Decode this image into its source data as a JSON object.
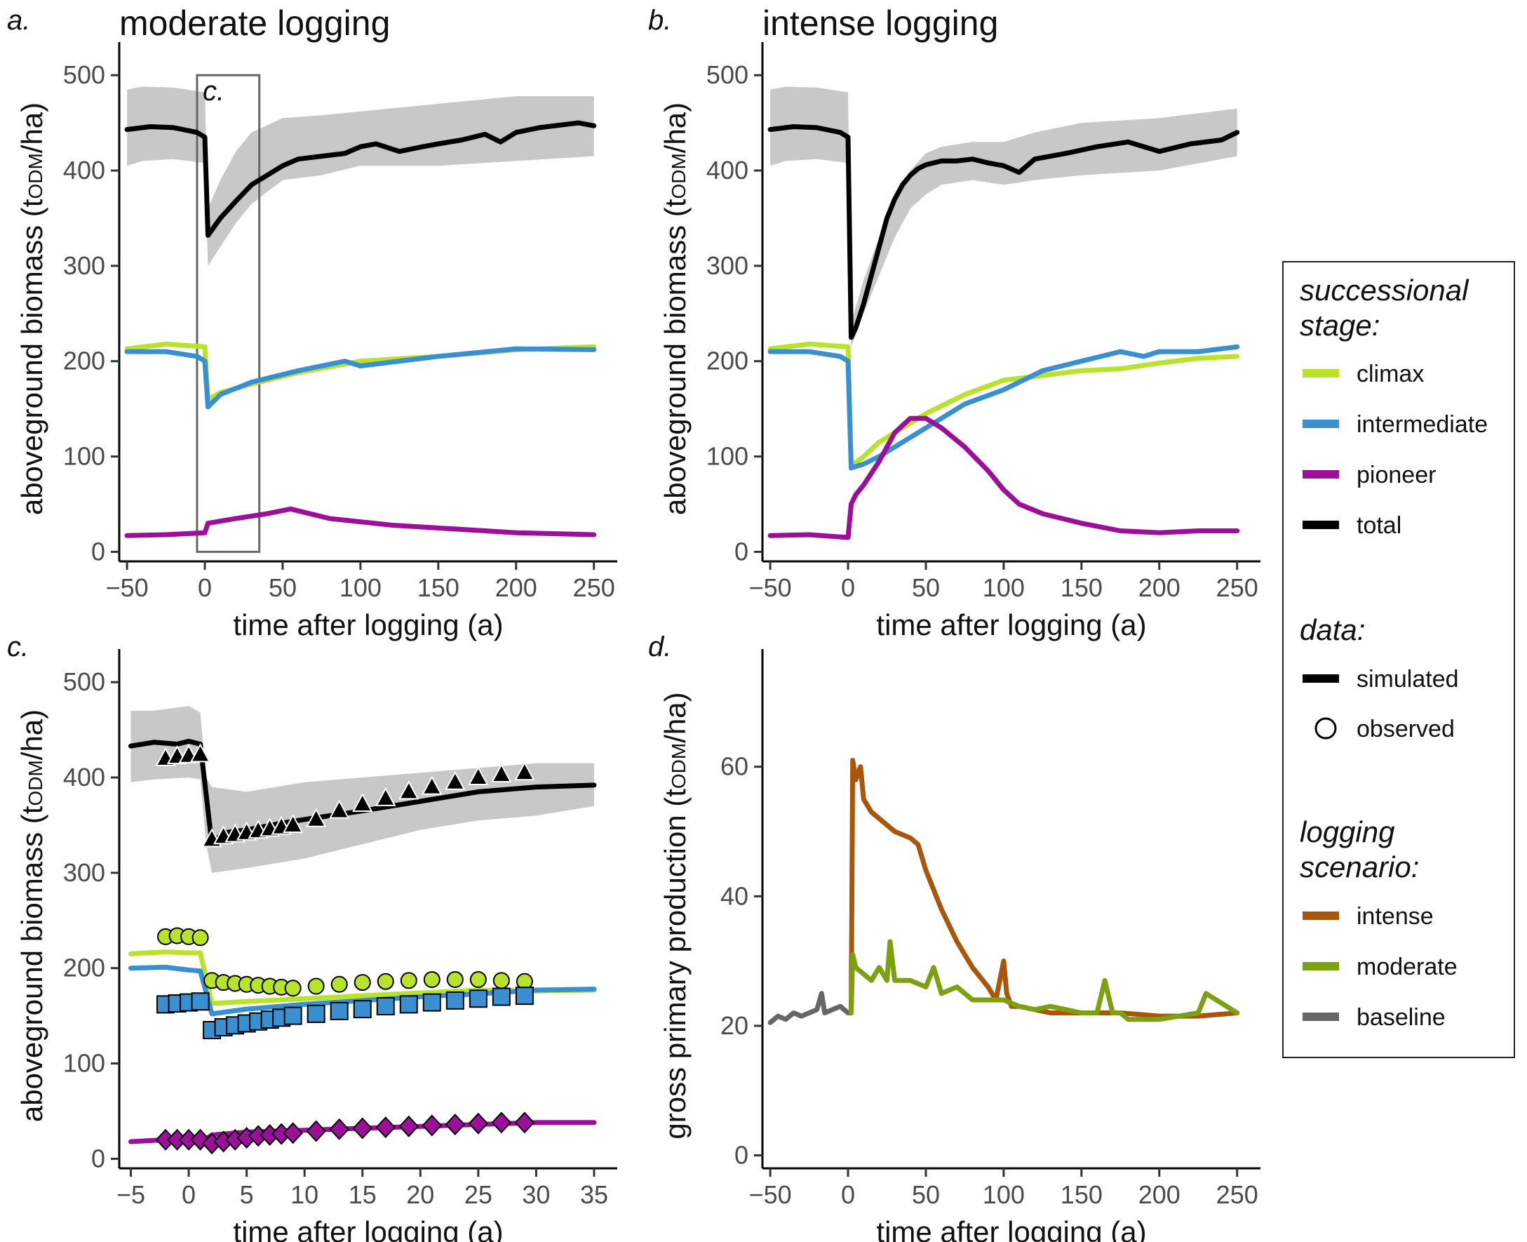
{
  "colors": {
    "climax": "#b9e22b",
    "intermediate": "#3a8fd1",
    "pioneer": "#9b0f9a",
    "total": "#000000",
    "band": "#c8c8c8",
    "intense": "#a8560b",
    "moderate": "#7da010",
    "baseline": "#666666"
  },
  "legend": {
    "stage_head_1": "successional",
    "stage_head_2": "stage:",
    "stage_items": [
      "climax",
      "intermediate",
      "pioneer",
      "total"
    ],
    "data_head": "data:",
    "data_items": [
      "simulated",
      "observed"
    ],
    "scenario_head_1": "logging",
    "scenario_head_2": "scenario:",
    "scenario_items": [
      "intense",
      "moderate",
      "baseline"
    ]
  },
  "chart_data": [
    {
      "id": "a",
      "letter": "a.",
      "type": "line",
      "title": "moderate logging",
      "xlabel": "time after logging (a)",
      "ylabel": "aboveground biomass (tODM/ha)",
      "xlim": [
        -55,
        265
      ],
      "ylim": [
        -10,
        520
      ],
      "xticks": [
        -50,
        0,
        50,
        100,
        150,
        200,
        250
      ],
      "xtick_labels": [
        "−50",
        "0",
        "50",
        "100",
        "150",
        "200",
        "250"
      ],
      "yticks": [
        0,
        100,
        200,
        300,
        400,
        500
      ],
      "inset_label": "c.",
      "inset_box": {
        "x": [
          -5,
          35
        ],
        "y": [
          0,
          500
        ]
      },
      "band": {
        "x": [
          -50,
          -40,
          -20,
          0,
          2,
          10,
          20,
          30,
          50,
          75,
          100,
          150,
          200,
          250
        ],
        "lower": [
          405,
          410,
          412,
          408,
          300,
          320,
          345,
          365,
          390,
          395,
          405,
          405,
          410,
          415
        ],
        "upper": [
          485,
          488,
          487,
          482,
          360,
          390,
          420,
          440,
          455,
          458,
          462,
          470,
          478,
          478
        ]
      },
      "series": [
        {
          "name": "climax",
          "x": [
            -50,
            -25,
            0,
            2,
            10,
            30,
            60,
            100,
            150,
            200,
            250
          ],
          "y": [
            213,
            218,
            215,
            160,
            167,
            176,
            188,
            200,
            205,
            212,
            215
          ]
        },
        {
          "name": "intermediate",
          "x": [
            -50,
            -25,
            -5,
            0,
            2,
            10,
            30,
            60,
            90,
            100,
            150,
            200,
            250
          ],
          "y": [
            210,
            210,
            205,
            200,
            152,
            165,
            178,
            190,
            200,
            195,
            205,
            213,
            212
          ]
        },
        {
          "name": "pioneer",
          "x": [
            -50,
            -25,
            0,
            2,
            20,
            40,
            55,
            80,
            120,
            160,
            200,
            250
          ],
          "y": [
            17,
            18,
            20,
            30,
            35,
            40,
            45,
            35,
            28,
            24,
            20,
            18
          ]
        },
        {
          "name": "total",
          "x": [
            -50,
            -35,
            -20,
            -5,
            0,
            2,
            10,
            20,
            30,
            40,
            50,
            60,
            75,
            90,
            100,
            110,
            125,
            140,
            150,
            165,
            180,
            190,
            200,
            215,
            230,
            240,
            250
          ],
          "y": [
            443,
            446,
            445,
            440,
            435,
            332,
            350,
            368,
            385,
            395,
            405,
            412,
            415,
            418,
            425,
            428,
            420,
            425,
            428,
            432,
            438,
            430,
            440,
            445,
            448,
            450,
            447
          ]
        }
      ]
    },
    {
      "id": "b",
      "letter": "b.",
      "type": "line",
      "title": "intense logging",
      "xlabel": "time after logging (a)",
      "ylabel": "aboveground biomass (tODM/ha)",
      "xlim": [
        -55,
        265
      ],
      "ylim": [
        -10,
        520
      ],
      "xticks": [
        -50,
        0,
        50,
        100,
        150,
        200,
        250
      ],
      "xtick_labels": [
        "−50",
        "0",
        "50",
        "100",
        "150",
        "200",
        "250"
      ],
      "yticks": [
        0,
        100,
        200,
        300,
        400,
        500
      ],
      "band": {
        "x": [
          -50,
          -40,
          -20,
          0,
          2,
          10,
          20,
          30,
          40,
          50,
          60,
          80,
          100,
          120,
          150,
          200,
          250
        ],
        "lower": [
          405,
          410,
          412,
          408,
          215,
          250,
          290,
          330,
          360,
          375,
          385,
          390,
          385,
          390,
          395,
          400,
          415
        ],
        "upper": [
          485,
          488,
          487,
          482,
          240,
          285,
          330,
          370,
          400,
          418,
          425,
          430,
          430,
          440,
          450,
          455,
          465
        ]
      },
      "series": [
        {
          "name": "climax",
          "x": [
            -50,
            -25,
            0,
            2,
            10,
            20,
            30,
            50,
            75,
            100,
            125,
            150,
            175,
            200,
            225,
            250
          ],
          "y": [
            213,
            218,
            215,
            90,
            100,
            115,
            125,
            145,
            165,
            180,
            185,
            190,
            192,
            198,
            203,
            205
          ]
        },
        {
          "name": "intermediate",
          "x": [
            -50,
            -25,
            -5,
            0,
            2,
            10,
            20,
            30,
            50,
            75,
            100,
            125,
            150,
            175,
            190,
            200,
            225,
            250
          ],
          "y": [
            210,
            210,
            205,
            200,
            88,
            92,
            100,
            110,
            130,
            155,
            170,
            190,
            200,
            210,
            205,
            210,
            210,
            215
          ]
        },
        {
          "name": "pioneer",
          "x": [
            -50,
            -25,
            0,
            2,
            5,
            10,
            20,
            30,
            40,
            50,
            60,
            75,
            90,
            100,
            110,
            125,
            150,
            175,
            200,
            225,
            250
          ],
          "y": [
            17,
            18,
            15,
            50,
            60,
            70,
            95,
            125,
            140,
            140,
            130,
            110,
            85,
            65,
            50,
            40,
            30,
            22,
            20,
            22,
            22
          ]
        },
        {
          "name": "total",
          "x": [
            -50,
            -35,
            -20,
            -5,
            0,
            2,
            5,
            10,
            15,
            20,
            25,
            30,
            35,
            40,
            45,
            50,
            60,
            70,
            80,
            90,
            100,
            110,
            120,
            140,
            160,
            180,
            200,
            220,
            240,
            250
          ],
          "y": [
            443,
            446,
            445,
            440,
            435,
            225,
            235,
            260,
            290,
            320,
            350,
            370,
            385,
            395,
            402,
            406,
            410,
            410,
            412,
            408,
            405,
            398,
            412,
            418,
            425,
            430,
            420,
            428,
            432,
            440
          ]
        }
      ]
    },
    {
      "id": "c",
      "letter": "c.",
      "type": "line",
      "title": "",
      "xlabel": "time after logging (a)",
      "ylabel": "aboveground biomass (tODM/ha)",
      "xlim": [
        -6,
        37
      ],
      "ylim": [
        -10,
        520
      ],
      "xticks": [
        -5,
        0,
        5,
        10,
        15,
        20,
        25,
        30,
        35
      ],
      "xtick_labels": [
        "−5",
        "0",
        "5",
        "10",
        "15",
        "20",
        "25",
        "30",
        "35"
      ],
      "yticks": [
        0,
        100,
        200,
        300,
        400,
        500
      ],
      "band": {
        "x": [
          -5,
          -3,
          0,
          1,
          1.5,
          2,
          5,
          10,
          15,
          20,
          25,
          30,
          35
        ],
        "lower": [
          395,
          398,
          400,
          398,
          330,
          300,
          305,
          315,
          330,
          345,
          355,
          360,
          370
        ],
        "upper": [
          470,
          470,
          475,
          468,
          400,
          390,
          385,
          395,
          400,
          405,
          410,
          415,
          415
        ]
      },
      "series": [
        {
          "name": "climax",
          "x": [
            -5,
            -2,
            0,
            1,
            2,
            5,
            10,
            15,
            20,
            25,
            30,
            35
          ],
          "y": [
            215,
            217,
            216,
            216,
            163,
            165,
            168,
            171,
            174,
            177,
            176,
            177
          ]
        },
        {
          "name": "intermediate",
          "x": [
            -5,
            -2,
            0,
            1,
            2,
            5,
            10,
            15,
            20,
            25,
            30,
            35
          ],
          "y": [
            200,
            201,
            198,
            197,
            152,
            157,
            162,
            166,
            170,
            173,
            177,
            178
          ]
        },
        {
          "name": "pioneer",
          "x": [
            -5,
            -2,
            0,
            1,
            2,
            5,
            10,
            15,
            20,
            25,
            30,
            35
          ],
          "y": [
            18,
            20,
            18,
            17,
            25,
            28,
            30,
            32,
            34,
            36,
            38,
            38
          ]
        },
        {
          "name": "total",
          "x": [
            -5,
            -3,
            -1,
            0,
            1,
            2,
            3,
            5,
            8,
            10,
            15,
            20,
            25,
            30,
            35
          ],
          "y": [
            433,
            437,
            435,
            438,
            435,
            330,
            342,
            345,
            352,
            356,
            365,
            375,
            385,
            390,
            392
          ]
        }
      ],
      "observed": [
        {
          "name": "climax",
          "marker": "circle",
          "x": [
            -2,
            -1,
            0,
            1,
            2,
            3,
            4,
            5,
            6,
            7,
            8,
            9,
            11,
            13,
            15,
            17,
            19,
            21,
            23,
            25,
            27,
            29
          ],
          "y": [
            233,
            234,
            233,
            232,
            187,
            185,
            184,
            183,
            182,
            181,
            180,
            179,
            181,
            183,
            185,
            186,
            187,
            188,
            188,
            188,
            187,
            186
          ]
        },
        {
          "name": "intermediate",
          "marker": "square",
          "x": [
            -2,
            -1,
            0,
            1,
            2,
            3,
            4,
            5,
            6,
            7,
            8,
            9,
            11,
            13,
            15,
            17,
            19,
            21,
            23,
            25,
            27,
            29
          ],
          "y": [
            162,
            163,
            164,
            165,
            135,
            138,
            140,
            142,
            144,
            146,
            148,
            150,
            152,
            155,
            157,
            160,
            162,
            164,
            166,
            168,
            170,
            171
          ]
        },
        {
          "name": "pioneer",
          "marker": "diamond",
          "x": [
            -2,
            -1,
            0,
            1,
            2,
            3,
            4,
            5,
            6,
            7,
            8,
            9,
            11,
            13,
            15,
            17,
            19,
            21,
            23,
            25,
            27,
            29
          ],
          "y": [
            20,
            20,
            20,
            20,
            16,
            18,
            20,
            22,
            24,
            25,
            26,
            27,
            29,
            31,
            32,
            33,
            34,
            35,
            36,
            37,
            38,
            38
          ]
        },
        {
          "name": "total",
          "marker": "triangle",
          "x": [
            -2,
            -1,
            0,
            1,
            2,
            3,
            4,
            5,
            6,
            7,
            8,
            9,
            11,
            13,
            15,
            17,
            19,
            21,
            23,
            25,
            27,
            29
          ],
          "y": [
            420,
            422,
            423,
            424,
            335,
            338,
            340,
            342,
            344,
            346,
            348,
            350,
            356,
            365,
            372,
            378,
            385,
            390,
            395,
            400,
            403,
            405
          ]
        }
      ]
    },
    {
      "id": "d",
      "letter": "d.",
      "type": "line",
      "title": "",
      "xlabel": "time after logging (a)",
      "ylabel": "gross primary production (tODM/ha)",
      "xlim": [
        -55,
        265
      ],
      "ylim": [
        -2,
        76
      ],
      "xticks": [
        -50,
        0,
        50,
        100,
        150,
        200,
        250
      ],
      "xtick_labels": [
        "−50",
        "0",
        "50",
        "100",
        "150",
        "200",
        "250"
      ],
      "yticks": [
        0,
        20,
        40,
        60
      ],
      "series": [
        {
          "name": "baseline",
          "x": [
            -50,
            -45,
            -40,
            -35,
            -30,
            -25,
            -20,
            -17,
            -15,
            -10,
            -5,
            0,
            2
          ],
          "y": [
            20.5,
            21.5,
            21,
            22,
            21.5,
            22,
            22.5,
            25,
            22,
            22.5,
            23,
            22,
            22
          ]
        },
        {
          "name": "intense",
          "x": [
            2,
            3,
            5,
            8,
            10,
            15,
            20,
            30,
            40,
            45,
            50,
            60,
            70,
            80,
            90,
            95,
            100,
            102,
            105,
            110,
            120,
            130,
            150,
            175,
            200,
            225,
            250
          ],
          "y": [
            22,
            61,
            58,
            60,
            55,
            53,
            52,
            50,
            49,
            48,
            44,
            38,
            33,
            29,
            26,
            24,
            30,
            25,
            23,
            23,
            22.5,
            22,
            22,
            22,
            21.5,
            21.5,
            22
          ]
        },
        {
          "name": "moderate",
          "x": [
            2,
            3,
            5,
            10,
            15,
            20,
            25,
            27,
            30,
            40,
            50,
            55,
            60,
            70,
            80,
            90,
            100,
            110,
            120,
            130,
            140,
            150,
            160,
            165,
            170,
            175,
            180,
            200,
            225,
            230,
            250
          ],
          "y": [
            22,
            31,
            29,
            28,
            27,
            29,
            27,
            33,
            27,
            27,
            26,
            29,
            25,
            26,
            24,
            24,
            24,
            23,
            22.5,
            23,
            22.5,
            22,
            22,
            27,
            22,
            22,
            21,
            21,
            22,
            25,
            22
          ]
        }
      ]
    }
  ]
}
